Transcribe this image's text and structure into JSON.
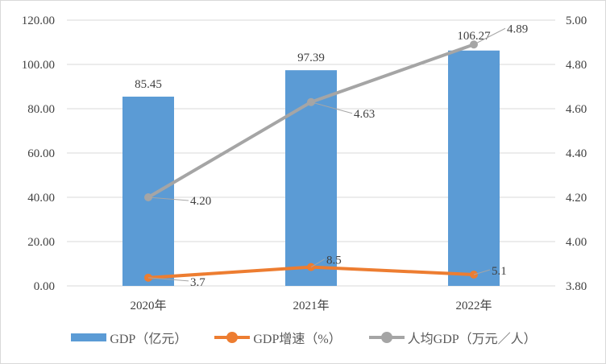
{
  "chart_data": {
    "type": "bar",
    "title": "",
    "categories": [
      "2020年",
      "2021年",
      "2022年"
    ],
    "series": [
      {
        "name": "GDP（亿元）",
        "kind": "bar",
        "axis": "left",
        "color": "#5b9bd5",
        "values": [
          85.45,
          97.39,
          106.27
        ],
        "labels": [
          "85.45",
          "97.39",
          "106.27"
        ]
      },
      {
        "name": "GDP增速（%）",
        "kind": "line",
        "axis": "left",
        "color": "#ed7d31",
        "values": [
          3.7,
          8.5,
          5.1
        ],
        "labels": [
          "3.7",
          "8.5",
          "5.1"
        ]
      },
      {
        "name": "人均GDP（万元／人）",
        "kind": "line",
        "axis": "right",
        "color": "#a5a5a5",
        "values": [
          4.2,
          4.63,
          4.89
        ],
        "labels": [
          "4.20",
          "4.63",
          "4.89"
        ]
      }
    ],
    "y_left": {
      "range": [
        0,
        120
      ],
      "ticks": [
        "0.00",
        "20.00",
        "40.00",
        "60.00",
        "80.00",
        "100.00",
        "120.00"
      ]
    },
    "y_right": {
      "range": [
        3.8,
        5.0
      ],
      "ticks": [
        "3.80",
        "4.00",
        "4.20",
        "4.40",
        "4.60",
        "4.80",
        "5.00"
      ]
    },
    "grid": true,
    "legend": "bottom"
  }
}
